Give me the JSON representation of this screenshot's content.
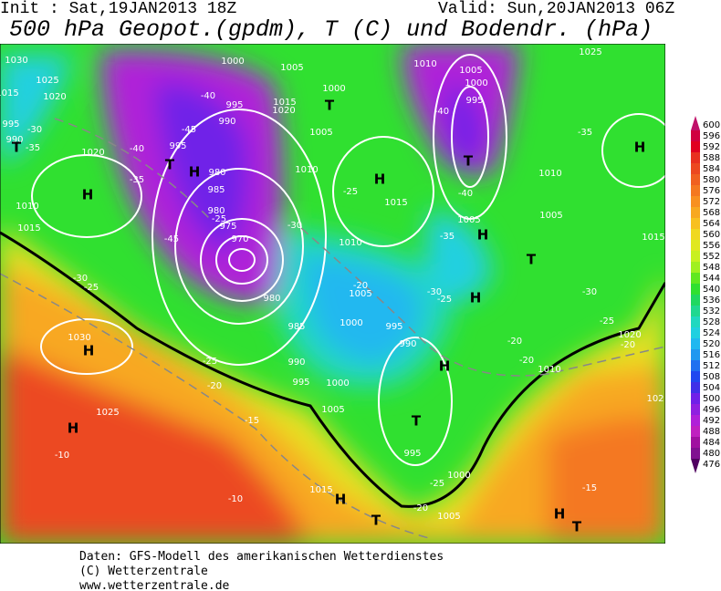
{
  "header": {
    "init": "Init : Sat,19JAN2013 18Z",
    "valid": "Valid: Sun,20JAN2013 06Z",
    "title": "500 hPa Geopot.(gpdm), T (C) und Bodendr. (hPa)"
  },
  "colorbar": {
    "levels": [
      600,
      596,
      592,
      588,
      584,
      580,
      576,
      572,
      568,
      564,
      560,
      556,
      552,
      548,
      544,
      540,
      536,
      532,
      528,
      524,
      520,
      516,
      512,
      508,
      504,
      500,
      496,
      492,
      488,
      484,
      480,
      476
    ],
    "colors": [
      "#c0106a",
      "#d00040",
      "#e00020",
      "#e83020",
      "#ec4820",
      "#f06020",
      "#f47820",
      "#f89020",
      "#f8a820",
      "#f8c020",
      "#f0d820",
      "#e0e820",
      "#c8f020",
      "#a0f020",
      "#60e820",
      "#30e030",
      "#20d860",
      "#20d890",
      "#20d8c0",
      "#20d0e0",
      "#20b8f0",
      "#2098f0",
      "#2070f0",
      "#2048f0",
      "#4030e8",
      "#7020e8",
      "#9020e0",
      "#b020d8",
      "#c020c0",
      "#a010a0",
      "#801090",
      "#500060"
    ]
  },
  "map_labels": [
    "1030",
    "1025",
    "1020",
    "1015",
    "995",
    "990",
    "1020",
    "1010",
    "1015",
    "H",
    "T",
    "T",
    "H",
    "995",
    "990",
    "985",
    "980",
    "980",
    "975",
    "970",
    "980",
    "985",
    "990",
    "995",
    "1000",
    "1005",
    "1000",
    "995",
    "1005",
    "1015",
    "1020",
    "1010",
    "1005",
    "1000",
    "T",
    "H",
    "1015",
    "1010",
    "1005",
    "1000",
    "995",
    "990",
    "H",
    "T",
    "995",
    "1000",
    "1005",
    "1010",
    "1005",
    "1000",
    "995",
    "T",
    "1010",
    "1005",
    "1005",
    "H",
    "T",
    "H",
    "H",
    "1025",
    "1015",
    "1020",
    "1010",
    "1030",
    "H",
    "1025",
    "H",
    "-10",
    "-10",
    "-15",
    "-20",
    "-25",
    "-25",
    "-30",
    "-35",
    "-40",
    "-45",
    "-40",
    "-45",
    "-35",
    "-30",
    "-25",
    "-30",
    "-25",
    "-20",
    "-25",
    "-30",
    "-35",
    "-40",
    "-40",
    "-35",
    "-30",
    "-25",
    "-20",
    "-20",
    "-20",
    "-15",
    "1015",
    "H",
    "T",
    "-20",
    "-25",
    "H",
    "T",
    "102"
  ],
  "footer": [
    "Daten: GFS-Modell des amerikanischen Wetterdienstes",
    "(C) Wetterzentrale",
    "www.wetterzentrale.de"
  ]
}
